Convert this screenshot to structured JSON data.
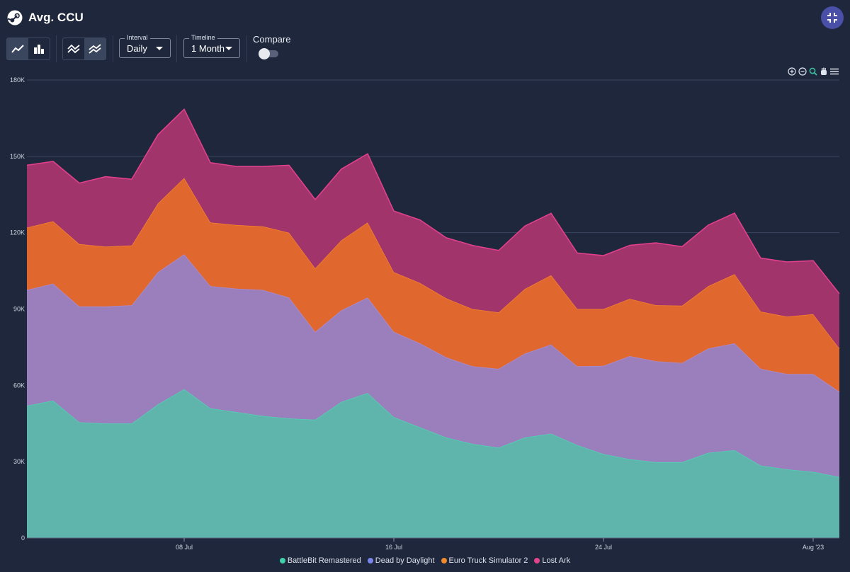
{
  "header": {
    "title": "Avg. CCU",
    "logo_icon": "steam-logo-icon",
    "collapse_icon": "collapse-icon"
  },
  "toolbar": {
    "chart_type_buttons": [
      {
        "icon": "line-chart-icon",
        "active": true
      },
      {
        "icon": "bar-chart-icon",
        "active": false
      }
    ],
    "mode_buttons": [
      {
        "icon": "overlap-lines-icon",
        "active": false
      },
      {
        "icon": "stacked-lines-icon",
        "active": true
      }
    ],
    "interval": {
      "label": "Interval",
      "value": "Daily"
    },
    "timeline": {
      "label": "Timeline",
      "value": "1 Month"
    },
    "compare": {
      "label": "Compare",
      "enabled": false
    }
  },
  "chart_tools": [
    "zoom-in-icon",
    "zoom-out-icon",
    "zoom-select-icon",
    "pan-hand-icon",
    "menu-icon"
  ],
  "chart_data": {
    "type": "area",
    "stacked": true,
    "title": "",
    "xlabel": "",
    "ylabel": "",
    "ylim": [
      0,
      180000
    ],
    "y_ticks": [
      "0",
      "30K",
      "60K",
      "90K",
      "120K",
      "150K",
      "180K"
    ],
    "y_tick_values": [
      0,
      30000,
      60000,
      90000,
      120000,
      150000,
      180000
    ],
    "x_ticks": [
      {
        "day": 7,
        "label": "08 Jul"
      },
      {
        "day": 15,
        "label": "16 Jul"
      },
      {
        "day": 23,
        "label": "24 Jul"
      },
      {
        "day": 31,
        "label": "Aug '23"
      }
    ],
    "x_domain": [
      1,
      32
    ],
    "x": [
      "2023-07-02",
      "2023-07-03",
      "2023-07-04",
      "2023-07-05",
      "2023-07-06",
      "2023-07-07",
      "2023-07-08",
      "2023-07-09",
      "2023-07-10",
      "2023-07-11",
      "2023-07-12",
      "2023-07-13",
      "2023-07-14",
      "2023-07-15",
      "2023-07-16",
      "2023-07-17",
      "2023-07-18",
      "2023-07-19",
      "2023-07-20",
      "2023-07-21",
      "2023-07-22",
      "2023-07-23",
      "2023-07-24",
      "2023-07-25",
      "2023-07-26",
      "2023-07-27",
      "2023-07-28",
      "2023-07-29",
      "2023-07-30",
      "2023-07-31",
      "2023-08-01",
      "2023-08-02"
    ],
    "grid": true,
    "legend_position": "bottom",
    "series": [
      {
        "name": "BattleBit Remastered",
        "color": "#5fb4ac",
        "line_color": "#4fd3b1",
        "legend_color": "#41d1a8",
        "values": [
          52000,
          54000,
          45500,
          45000,
          45000,
          52500,
          58500,
          51000,
          49500,
          48000,
          47000,
          46500,
          53500,
          57000,
          47500,
          43500,
          39500,
          37000,
          35500,
          39500,
          41000,
          36500,
          33000,
          31000,
          29800,
          29800,
          33500,
          34500,
          28500,
          27000,
          26000,
          24000
        ]
      },
      {
        "name": "Dead by Daylight",
        "color": "#9b7fbd",
        "line_color": "#a88ccf",
        "legend_color": "#7b86ea",
        "values": [
          45500,
          46000,
          45500,
          46000,
          46500,
          52000,
          53000,
          48000,
          48500,
          49500,
          47500,
          34500,
          36000,
          37500,
          33500,
          33000,
          31500,
          30500,
          31000,
          33000,
          35000,
          31000,
          34700,
          40500,
          39700,
          39000,
          41000,
          42000,
          38000,
          37500,
          38500,
          33500
        ]
      },
      {
        "name": "Euro Truck Simulator 2",
        "color": "#e0672e",
        "line_color": "#f2822f",
        "legend_color": "#f08a2c",
        "values": [
          24500,
          24500,
          24500,
          23500,
          23500,
          27000,
          30000,
          25000,
          25000,
          25000,
          25500,
          25000,
          27500,
          29500,
          23500,
          23700,
          23200,
          22500,
          22200,
          25400,
          27300,
          22500,
          22300,
          22500,
          22000,
          22500,
          24500,
          27200,
          22500,
          22500,
          23500,
          17000
        ]
      },
      {
        "name": "Lost Ark",
        "color": "#a0346b",
        "line_color": "#e1408c",
        "legend_color": "#e0458b",
        "values": [
          24500,
          23500,
          24000,
          27500,
          26000,
          27000,
          27000,
          23500,
          23000,
          23500,
          26500,
          27000,
          28000,
          27000,
          24000,
          24800,
          23800,
          25000,
          24300,
          24700,
          24300,
          22000,
          21000,
          21000,
          24500,
          23200,
          24000,
          24000,
          21000,
          21500,
          21000,
          21500
        ]
      }
    ]
  }
}
